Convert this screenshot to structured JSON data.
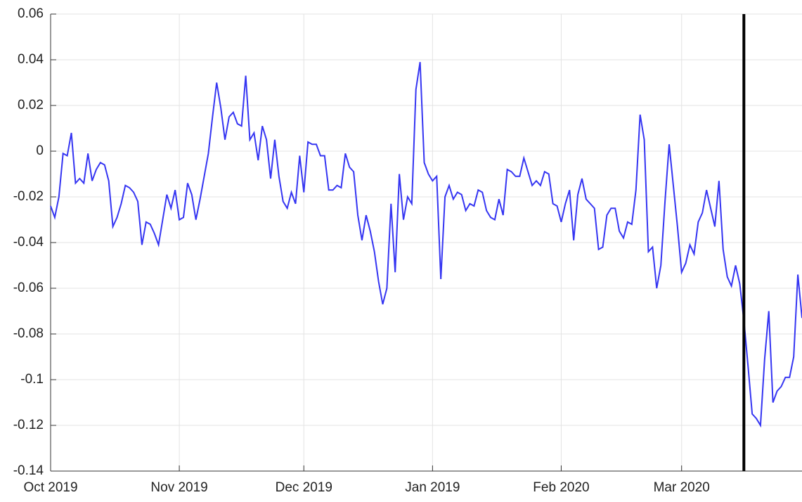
{
  "chart_data": {
    "type": "line",
    "x": [
      0,
      1,
      2,
      3,
      4,
      5,
      6,
      7,
      8,
      9,
      10,
      11,
      12,
      13,
      14,
      15,
      16,
      17,
      18,
      19,
      20,
      21,
      22,
      23,
      24,
      25,
      26,
      27,
      28,
      29,
      30,
      31,
      32,
      33,
      34,
      35,
      36,
      37,
      38,
      39,
      40,
      41,
      42,
      43,
      44,
      45,
      46,
      47,
      48,
      49,
      50,
      51,
      52,
      53,
      54,
      55,
      56,
      57,
      58,
      59,
      60,
      61,
      62,
      63,
      64,
      65,
      66,
      67,
      68,
      69,
      70,
      71,
      72,
      73,
      74,
      75,
      76,
      77,
      78,
      79,
      80,
      81,
      82,
      83,
      84,
      85,
      86,
      87,
      88,
      89,
      90,
      91,
      92,
      93,
      94,
      95,
      96,
      97,
      98,
      99,
      100,
      101,
      102,
      103,
      104,
      105,
      106,
      107,
      108,
      109,
      110,
      111,
      112,
      113,
      114,
      115,
      116,
      117,
      118,
      119,
      120,
      121,
      122,
      123,
      124,
      125,
      126,
      127,
      128,
      129,
      130,
      131,
      132,
      133,
      134,
      135,
      136,
      137,
      138,
      139,
      140,
      141,
      142,
      143,
      144,
      145,
      146,
      147,
      148,
      149,
      150,
      151,
      152,
      153,
      154,
      155,
      156,
      157,
      158,
      159,
      160,
      161,
      162,
      163,
      164,
      165,
      166,
      167,
      168,
      169,
      170,
      171,
      172,
      173,
      174,
      175,
      176,
      177,
      178,
      179,
      180,
      181
    ],
    "series": [
      {
        "color": "#3535f2",
        "values": [
          -0.024,
          -0.029,
          -0.02,
          -0.001,
          -0.002,
          0.008,
          -0.014,
          -0.012,
          -0.014,
          -0.001,
          -0.013,
          -0.008,
          -0.005,
          -0.006,
          -0.013,
          -0.033,
          -0.029,
          -0.023,
          -0.015,
          -0.016,
          -0.018,
          -0.022,
          -0.041,
          -0.031,
          -0.032,
          -0.036,
          -0.041,
          -0.03,
          -0.019,
          -0.025,
          -0.017,
          -0.03,
          -0.029,
          -0.014,
          -0.019,
          -0.03,
          -0.021,
          -0.011,
          -0.001,
          0.015,
          0.03,
          0.019,
          0.005,
          0.015,
          0.017,
          0.012,
          0.011,
          0.033,
          0.005,
          0.008,
          -0.004,
          0.011,
          0.005,
          -0.012,
          0.005,
          -0.011,
          -0.022,
          -0.025,
          -0.018,
          -0.023,
          -0.002,
          -0.018,
          0.004,
          0.003,
          0.003,
          -0.002,
          -0.002,
          -0.017,
          -0.017,
          -0.015,
          -0.016,
          -0.001,
          -0.007,
          -0.009,
          -0.028,
          -0.039,
          -0.028,
          -0.035,
          -0.044,
          -0.057,
          -0.067,
          -0.06,
          -0.023,
          -0.053,
          -0.01,
          -0.03,
          -0.02,
          -0.023,
          0.027,
          0.039,
          -0.005,
          -0.01,
          -0.013,
          -0.011,
          -0.056,
          -0.02,
          -0.015,
          -0.021,
          -0.018,
          -0.019,
          -0.026,
          -0.023,
          -0.024,
          -0.017,
          -0.018,
          -0.026,
          -0.029,
          -0.03,
          -0.021,
          -0.028,
          -0.008,
          -0.009,
          -0.011,
          -0.011,
          -0.003,
          -0.009,
          -0.015,
          -0.013,
          -0.015,
          -0.009,
          -0.01,
          -0.023,
          -0.024,
          -0.031,
          -0.023,
          -0.017,
          -0.039,
          -0.019,
          -0.012,
          -0.021,
          -0.023,
          -0.025,
          -0.043,
          -0.042,
          -0.028,
          -0.025,
          -0.025,
          -0.035,
          -0.038,
          -0.031,
          -0.032,
          -0.017,
          0.016,
          0.005,
          -0.044,
          -0.042,
          -0.06,
          -0.05,
          -0.022,
          0.003,
          -0.015,
          -0.033,
          -0.053,
          -0.049,
          -0.041,
          -0.045,
          -0.031,
          -0.027,
          -0.017,
          -0.025,
          -0.033,
          -0.013,
          -0.043,
          -0.055,
          -0.059,
          -0.05,
          -0.058,
          -0.074,
          -0.094,
          -0.115,
          -0.117,
          -0.12,
          -0.091,
          -0.07,
          -0.11,
          -0.105,
          -0.103,
          -0.099,
          -0.099,
          -0.09,
          -0.054,
          -0.073
        ]
      }
    ],
    "xlim": [
      0,
      181
    ],
    "xticks": [
      {
        "value": 0,
        "label": "Oct 2019"
      },
      {
        "value": 31,
        "label": "Nov 2019"
      },
      {
        "value": 61,
        "label": "Dec 2019"
      },
      {
        "value": 92,
        "label": "Jan 2019"
      },
      {
        "value": 123,
        "label": "Feb 2020"
      },
      {
        "value": 152,
        "label": "Mar 2020"
      }
    ],
    "ylim": [
      -0.14,
      0.06
    ],
    "yticks": [
      -0.14,
      -0.12,
      -0.1,
      -0.08,
      -0.06,
      -0.04,
      -0.02,
      0,
      0.02,
      0.04,
      0.06
    ],
    "grid": true,
    "vline_x": 167,
    "vline_color": "#000000"
  }
}
